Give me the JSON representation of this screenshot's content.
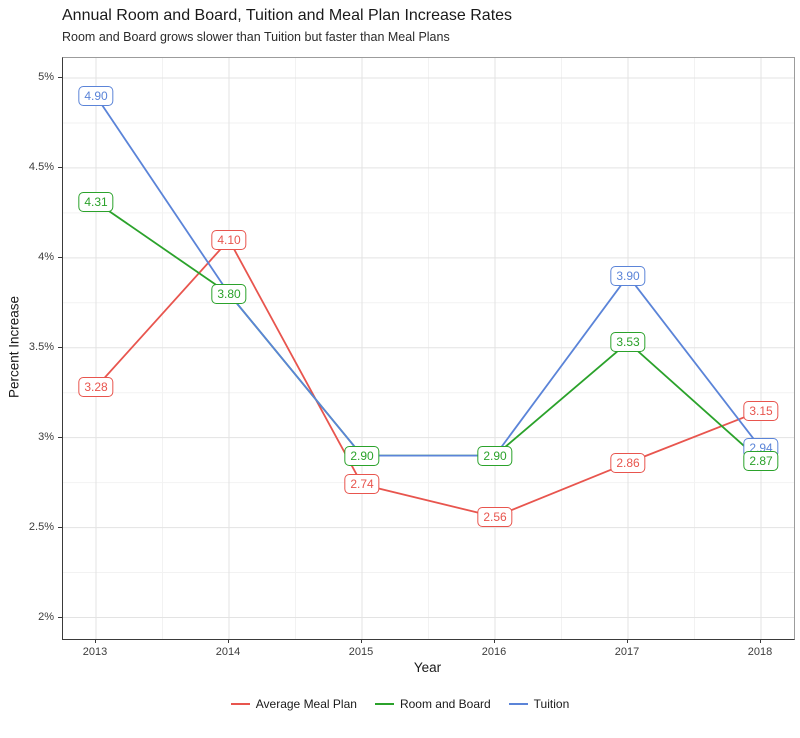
{
  "header": {
    "title": "Annual Room and Board, Tuition and Meal Plan Increase Rates",
    "subtitle": "Room and Board grows slower than Tuition but faster than Meal Plans"
  },
  "chart_data": {
    "type": "line",
    "title": "Annual Room and Board, Tuition and Meal Plan Increase Rates",
    "subtitle": "Room and Board grows slower than Tuition but faster than Meal Plans",
    "xlabel": "Year",
    "ylabel": "Percent Increase",
    "x": [
      2013,
      2014,
      2015,
      2016,
      2017,
      2018
    ],
    "x_tick_labels": [
      "2013",
      "2014",
      "2015",
      "2016",
      "2017",
      "2018"
    ],
    "y_ticks": [
      2,
      2.5,
      3,
      3.5,
      4,
      4.5,
      5
    ],
    "y_tick_labels": [
      "2%",
      "2.5%",
      "3%",
      "3.5%",
      "4%",
      "4.5%",
      "5%"
    ],
    "y_minor_ticks": [
      2.25,
      2.75,
      3.25,
      3.75,
      4.25,
      4.75
    ],
    "ylim": [
      2,
      5
    ],
    "grid": true,
    "legend_position": "bottom",
    "series": [
      {
        "name": "Average Meal Plan",
        "color": "#E8554E",
        "values": [
          3.28,
          4.1,
          2.74,
          2.56,
          2.86,
          3.15
        ],
        "point_labels": [
          "3.28",
          "4.10",
          "2.74",
          "2.56",
          "2.86",
          "3.15"
        ]
      },
      {
        "name": "Room and Board",
        "color": "#2BA22B",
        "values": [
          4.31,
          3.8,
          2.9,
          2.9,
          3.53,
          2.87
        ],
        "point_labels": [
          "4.31",
          "3.80",
          "2.90",
          "2.90",
          "3.53",
          "2.87"
        ]
      },
      {
        "name": "Tuition",
        "color": "#5B84D8",
        "values": [
          4.9,
          3.8,
          2.9,
          2.9,
          3.9,
          2.94
        ],
        "point_labels": [
          "4.90",
          null,
          null,
          null,
          "3.90",
          "2.94"
        ]
      }
    ]
  }
}
